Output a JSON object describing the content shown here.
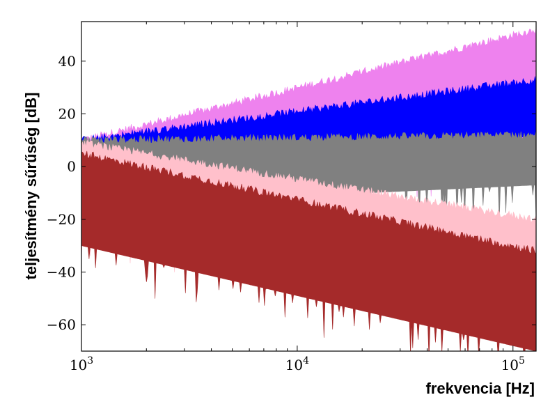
{
  "chart_data": {
    "type": "line",
    "xlabel": "frekvencia [Hz]",
    "ylabel": "teljesítmény sűrűség [dB]",
    "x_scale": "log",
    "xlim": [
      1000,
      128000
    ],
    "ylim": [
      -70,
      55
    ],
    "x_ticks": [
      {
        "value": 1000,
        "base": "10",
        "exp": "3"
      },
      {
        "value": 10000,
        "base": "10",
        "exp": "4"
      },
      {
        "value": 100000,
        "base": "10",
        "exp": "5"
      }
    ],
    "y_ticks": [
      {
        "value": 40,
        "label": "40"
      },
      {
        "value": 20,
        "label": "20"
      },
      {
        "value": 0,
        "label": "0"
      },
      {
        "value": -20,
        "label": "−20"
      },
      {
        "value": -40,
        "label": "−40"
      },
      {
        "value": -60,
        "label": "−60"
      }
    ],
    "grid": false,
    "series": [
      {
        "color": "#ee82ee",
        "top": [
          10,
          52
        ],
        "bottom": [
          -20,
          9
        ]
      },
      {
        "color": "#0000ff",
        "top": [
          10,
          33
        ],
        "bottom": [
          -15,
          12
        ]
      },
      {
        "color": "#808080",
        "top": [
          10,
          12
        ],
        "bottom": [
          -15,
          -7
        ]
      },
      {
        "color": "#ffc0cb",
        "top": [
          9,
          -20
        ],
        "bottom": [
          -25,
          -32
        ]
      },
      {
        "color": "#a52a2a",
        "top": [
          5,
          -32
        ],
        "bottom": [
          -30,
          -70
        ]
      }
    ]
  }
}
